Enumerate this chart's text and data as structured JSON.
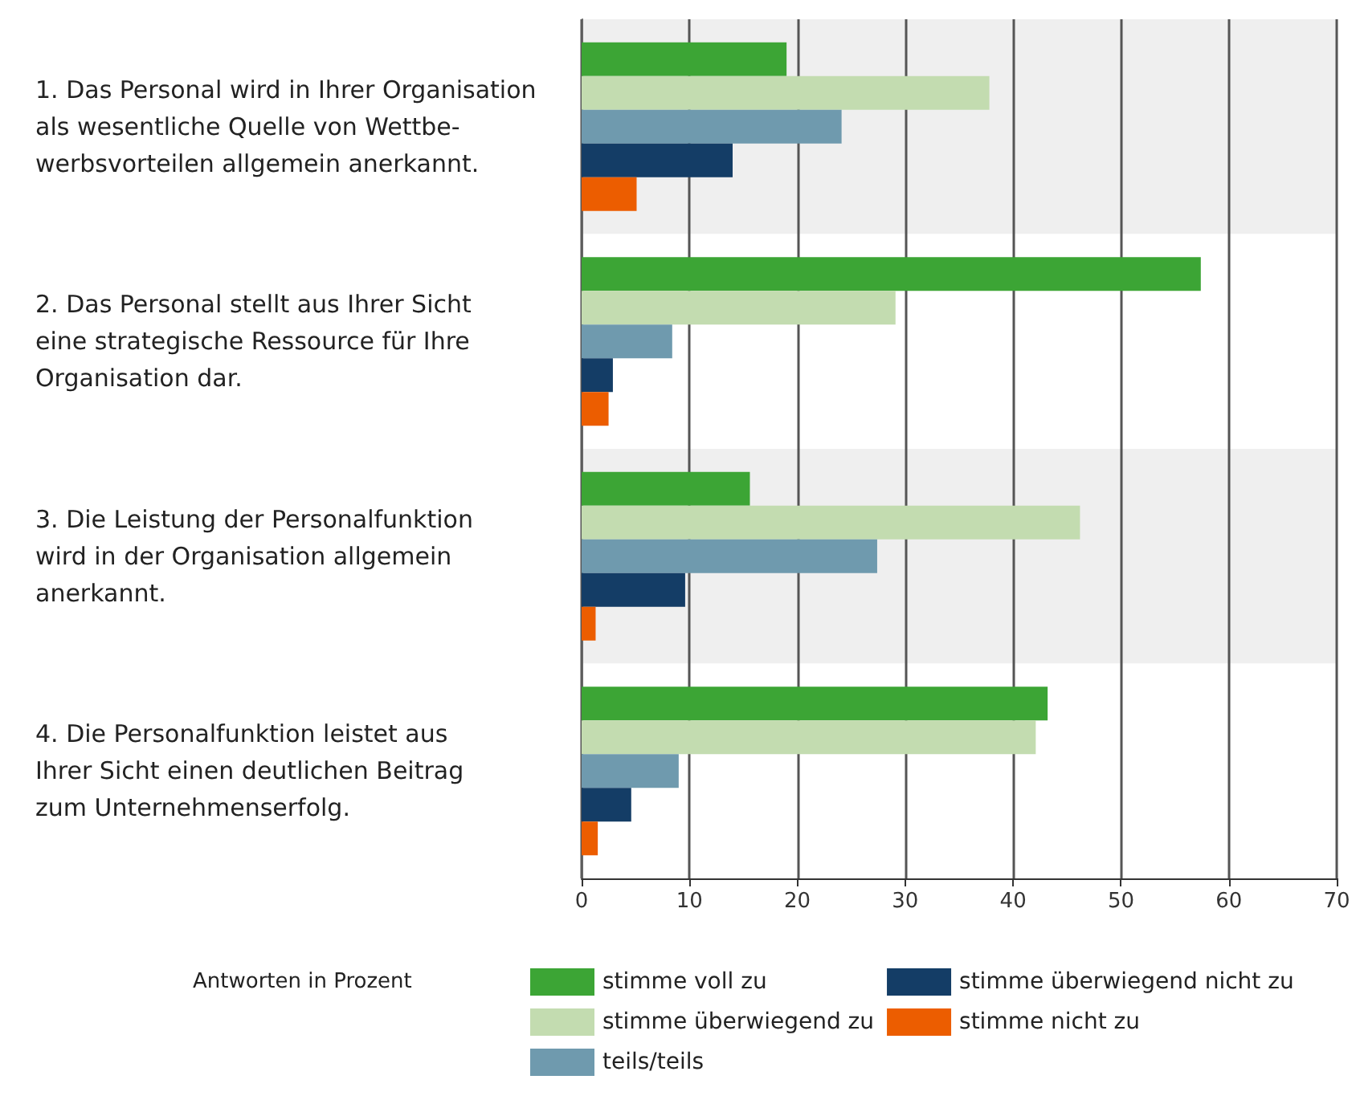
{
  "chart_data": {
    "type": "bar",
    "orientation": "horizontal",
    "categories": [
      "1. Das Personal wird in Ihrer Organisation\nals wesentliche Quelle von Wettbe-\nwerbsvorteilen allgemein anerkannt.",
      "2. Das Personal stellt aus Ihrer Sicht\neine strategische Ressource für Ihre\nOrganisation dar.",
      "3. Die Leistung der Personalfunktion\nwird in der Organisation allgemein\nanerkannt.",
      "4. Die Personalfunktion leistet aus\nIhrer Sicht einen deutlichen Beitrag\nzum Unternehmenserfolg."
    ],
    "series": [
      {
        "name": "stimme voll zu",
        "color": "#3ca535",
        "values": [
          19.0,
          57.4,
          15.6,
          43.2
        ]
      },
      {
        "name": "stimme überwiegend zu",
        "color": "#c3dcb0",
        "values": [
          37.8,
          29.1,
          46.2,
          42.1
        ]
      },
      {
        "name": "teils/teils",
        "color": "#6f9aae",
        "values": [
          24.1,
          8.4,
          27.4,
          9.0
        ]
      },
      {
        "name": "stimme überwiegend nicht zu",
        "color": "#143d66",
        "values": [
          14.0,
          2.9,
          9.6,
          4.6
        ]
      },
      {
        "name": "stimme nicht zu",
        "color": "#ec5d00",
        "values": [
          5.1,
          2.5,
          1.3,
          1.5
        ]
      }
    ],
    "xlim": [
      0,
      70
    ],
    "xticks": [
      0,
      10,
      20,
      30,
      40,
      50,
      60,
      70
    ],
    "grid": "x",
    "legend": "bottom",
    "legend_title": "Antworten in Prozent"
  }
}
